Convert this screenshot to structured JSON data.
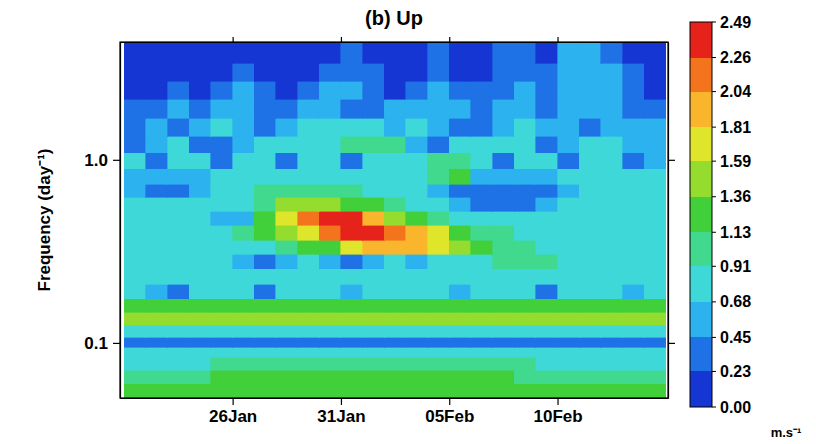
{
  "chart_data": {
    "type": "heatmap",
    "title": "(b) Up",
    "y_label": "Frequency (day⁻¹)",
    "log": "y",
    "xlim": [
      20.8,
      46.1
    ],
    "xticks": [
      {
        "value": 26,
        "label": "26Jan"
      },
      {
        "value": 31,
        "label": "31Jan"
      },
      {
        "value": 36,
        "label": "05Feb"
      },
      {
        "value": 41,
        "label": "10Feb"
      }
    ],
    "ylim": [
      0.05,
      4.4
    ],
    "yticks": [
      {
        "value": 0.1,
        "label": "0.1"
      },
      {
        "value": 1,
        "label": "1.0"
      }
    ],
    "x": [
      21.5,
      22.5,
      23.5,
      24.5,
      25.5,
      26.5,
      27.5,
      28.5,
      29.5,
      30.5,
      31.5,
      32.5,
      33.5,
      34.5,
      35.5,
      36.5,
      37.5,
      38.5,
      39.5,
      40.5,
      41.5,
      42.5,
      43.5,
      44.5,
      45.5
    ],
    "y": [
      0.055,
      0.065,
      0.077,
      0.09,
      0.1,
      0.115,
      0.135,
      0.16,
      0.19,
      0.23,
      0.28,
      0.33,
      0.4,
      0.48,
      0.57,
      0.68,
      0.8,
      1,
      1.2,
      1.5,
      1.9,
      2.4,
      3,
      3.8
    ],
    "z": [
      [
        1.2,
        1.22,
        1.24,
        1.25,
        1.25,
        1.26,
        1.26,
        1.27,
        1.27,
        1.27,
        1.28,
        1.28,
        1.28,
        1.27,
        1.27,
        1.26,
        1.26,
        1.25,
        1.25,
        1.24,
        1.24,
        1.23,
        1.22,
        1.21,
        1.2
      ],
      [
        1.05,
        1.08,
        1.1,
        1.12,
        1.13,
        1.14,
        1.15,
        1.15,
        1.16,
        1.16,
        1.16,
        1.16,
        1.16,
        1.16,
        1.15,
        1.15,
        1.14,
        1.13,
        1.12,
        1.12,
        1.11,
        1.1,
        1.08,
        1.06,
        1.04
      ],
      [
        0.88,
        0.89,
        0.9,
        0.9,
        0.91,
        0.92,
        0.92,
        0.93,
        0.93,
        0.94,
        0.94,
        0.94,
        0.94,
        0.93,
        0.93,
        0.92,
        0.92,
        0.91,
        0.91,
        0.9,
        0.9,
        0.9,
        0.89,
        0.88,
        0.88
      ],
      [
        0.7,
        0.71,
        0.72,
        0.72,
        0.73,
        0.73,
        0.74,
        0.74,
        0.75,
        0.75,
        0.75,
        0.75,
        0.75,
        0.75,
        0.74,
        0.74,
        0.73,
        0.73,
        0.72,
        0.72,
        0.72,
        0.71,
        0.71,
        0.7,
        0.7
      ],
      [
        0.36,
        0.37,
        0.37,
        0.38,
        0.38,
        0.38,
        0.39,
        0.39,
        0.39,
        0.4,
        0.4,
        0.4,
        0.4,
        0.4,
        0.39,
        0.39,
        0.39,
        0.38,
        0.38,
        0.38,
        0.37,
        0.37,
        0.37,
        0.36,
        0.36
      ],
      [
        0.78,
        0.78,
        0.79,
        0.79,
        0.8,
        0.8,
        0.8,
        0.81,
        0.81,
        0.81,
        0.82,
        0.82,
        0.82,
        0.82,
        0.81,
        0.81,
        0.81,
        0.8,
        0.8,
        0.8,
        0.79,
        0.79,
        0.79,
        0.78,
        0.78
      ],
      [
        1.4,
        1.41,
        1.42,
        1.43,
        1.44,
        1.45,
        1.45,
        1.46,
        1.46,
        1.47,
        1.47,
        1.47,
        1.47,
        1.47,
        1.46,
        1.46,
        1.45,
        1.45,
        1.44,
        1.44,
        1.43,
        1.42,
        1.42,
        1.41,
        1.4
      ],
      [
        1.15,
        1.16,
        1.17,
        1.18,
        1.18,
        1.19,
        1.19,
        1.2,
        1.2,
        1.2,
        1.21,
        1.21,
        1.21,
        1.21,
        1.2,
        1.2,
        1.2,
        1.19,
        1.19,
        1.18,
        1.18,
        1.17,
        1.17,
        1.16,
        1.15
      ],
      [
        0.8,
        0.45,
        0.4,
        0.75,
        0.8,
        0.8,
        0.42,
        0.78,
        0.8,
        0.8,
        0.45,
        0.8,
        0.8,
        0.8,
        0.78,
        0.45,
        0.8,
        0.8,
        0.8,
        0.42,
        0.8,
        0.8,
        0.8,
        0.45,
        0.8
      ],
      [
        0.8,
        0.8,
        0.82,
        0.82,
        0.82,
        0.83,
        0.84,
        0.85,
        0.86,
        0.88,
        0.9,
        0.9,
        0.9,
        0.88,
        0.86,
        0.85,
        0.84,
        0.83,
        0.82,
        0.82,
        0.82,
        0.8,
        0.8,
        0.8,
        0.8
      ],
      [
        0.75,
        0.72,
        0.7,
        0.7,
        0.72,
        0.45,
        0.4,
        0.45,
        0.7,
        0.45,
        0.4,
        0.45,
        0.75,
        0.5,
        0.75,
        0.8,
        0.85,
        0.95,
        0.95,
        0.95,
        0.85,
        0.8,
        0.75,
        0.75,
        0.72
      ],
      [
        0.8,
        0.8,
        0.8,
        0.8,
        0.82,
        0.85,
        0.9,
        1,
        1.15,
        1.35,
        1.6,
        1.85,
        1.95,
        1.9,
        1.75,
        1.5,
        1.25,
        1.05,
        0.95,
        0.9,
        0.85,
        0.82,
        0.8,
        0.8,
        0.8
      ],
      [
        0.8,
        0.8,
        0.82,
        0.85,
        0.9,
        1,
        1.15,
        1.4,
        1.8,
        2.2,
        2.45,
        2.4,
        2.2,
        1.95,
        1.65,
        1.35,
        1.1,
        0.95,
        0.88,
        0.85,
        0.82,
        0.8,
        0.8,
        0.8,
        0.8
      ],
      [
        0.8,
        0.78,
        0.75,
        0.7,
        0.6,
        0.45,
        1.2,
        1.75,
        2.15,
        2.4,
        2.3,
        2,
        1.55,
        1.2,
        1,
        0.9,
        0.85,
        0.8,
        0.78,
        0.78,
        0.8,
        0.8,
        0.8,
        0.8,
        0.8
      ],
      [
        0.8,
        0.8,
        0.78,
        0.75,
        0.75,
        0.85,
        1.1,
        1.4,
        1.5,
        1.45,
        1.3,
        1.15,
        1,
        0.9,
        0.75,
        0.5,
        0.38,
        0.35,
        0.38,
        0.5,
        0.7,
        0.8,
        0.8,
        0.8,
        0.8
      ],
      [
        0.6,
        0.4,
        0.38,
        0.45,
        0.7,
        0.85,
        0.95,
        1.05,
        1.05,
        1,
        0.95,
        0.9,
        0.85,
        0.75,
        0.5,
        0.35,
        0.3,
        0.3,
        0.33,
        0.4,
        0.65,
        0.75,
        0.8,
        0.8,
        0.75
      ],
      [
        0.5,
        0.45,
        0.5,
        0.65,
        0.75,
        0.8,
        0.8,
        0.75,
        0.7,
        0.75,
        0.8,
        0.8,
        0.85,
        0.9,
        1,
        1.2,
        0.6,
        0.45,
        0.5,
        0.6,
        0.75,
        0.8,
        0.78,
        0.75,
        0.7
      ],
      [
        0.7,
        0.4,
        0.7,
        0.75,
        0.4,
        0.7,
        0.75,
        0.4,
        0.72,
        0.78,
        0.42,
        0.8,
        0.8,
        0.85,
        0.95,
        1.1,
        0.8,
        0.4,
        0.7,
        0.72,
        0.4,
        0.7,
        0.7,
        0.4,
        0.65
      ],
      [
        0.35,
        0.6,
        0.7,
        0.4,
        0.38,
        0.65,
        0.7,
        0.75,
        0.8,
        0.85,
        0.95,
        1.05,
        1,
        0.45,
        0.4,
        0.8,
        0.75,
        0.7,
        0.7,
        0.4,
        0.65,
        0.7,
        0.7,
        0.65,
        0.6
      ],
      [
        0.4,
        0.55,
        0.35,
        0.6,
        0.7,
        0.65,
        0.4,
        0.6,
        0.7,
        0.75,
        0.8,
        0.7,
        0.6,
        0.7,
        0.65,
        0.4,
        0.35,
        0.6,
        0.7,
        0.55,
        0.6,
        0.4,
        0.6,
        0.55,
        0.5
      ],
      [
        0.3,
        0.35,
        0.5,
        0.3,
        0.55,
        0.6,
        0.35,
        0.3,
        0.55,
        0.6,
        0.4,
        0.35,
        0.5,
        0.6,
        0.55,
        0.45,
        0.35,
        0.55,
        0.6,
        0.4,
        0.5,
        0.6,
        0.45,
        0.35,
        0.3
      ],
      [
        0.2,
        0.18,
        0.3,
        0.2,
        0.35,
        0.5,
        0.25,
        0.2,
        0.3,
        0.45,
        0.5,
        0.3,
        0.2,
        0.35,
        0.5,
        0.3,
        0.25,
        0.35,
        0.5,
        0.3,
        0.55,
        0.6,
        0.5,
        0.3,
        0.2
      ],
      [
        0.12,
        0.1,
        0.15,
        0.12,
        0.2,
        0.3,
        0.15,
        0.1,
        0.15,
        0.3,
        0.4,
        0.25,
        0.15,
        0.2,
        0.35,
        0.2,
        0.15,
        0.3,
        0.4,
        0.25,
        0.5,
        0.55,
        0.45,
        0.25,
        0.15
      ],
      [
        0.1,
        0.1,
        0.12,
        0.1,
        0.15,
        0.2,
        0.1,
        0.1,
        0.12,
        0.2,
        0.3,
        0.2,
        0.12,
        0.15,
        0.25,
        0.15,
        0.12,
        0.25,
        0.3,
        0.2,
        0.45,
        0.5,
        0.4,
        0.2,
        0.12
      ]
    ],
    "colorbar": {
      "range": [
        0,
        2.49
      ],
      "ticks": [
        {
          "value": 0,
          "label": "0.00"
        },
        0.23,
        0.45,
        0.68,
        0.91,
        1.13,
        1.36,
        1.59,
        1.81,
        2.04,
        2.26,
        2.49
      ],
      "label": "m.s⁻¹"
    }
  }
}
